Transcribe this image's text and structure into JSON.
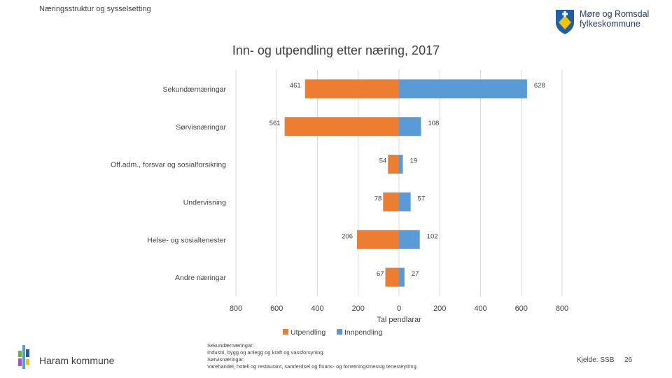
{
  "header": {
    "section_label": "Næringsstruktur og sysselsetting"
  },
  "logo": {
    "line1": "Møre og Romsdal",
    "line2": "fylkeskommune"
  },
  "chart_data": {
    "type": "bar",
    "orientation": "horizontal",
    "title": "Inn- og utpendling etter næring, 2017",
    "xlabel": "Tal pendlarar",
    "xlim": [
      -800,
      800
    ],
    "xticks": [
      -800,
      -600,
      -400,
      -200,
      0,
      200,
      400,
      600,
      800
    ],
    "xtick_labels": [
      "800",
      "600",
      "400",
      "200",
      "0",
      "200",
      "400",
      "600",
      "800"
    ],
    "categories": [
      "Sekundærnæringar",
      "Sørvisnæringar",
      "Off.adm., forsvar og sosialforsikring",
      "Undervisning",
      "Helse- og sosialtenester",
      "Andre næringar"
    ],
    "series": [
      {
        "name": "Utpendling",
        "color": "#ED7D31",
        "values": [
          461,
          561,
          54,
          78,
          206,
          67
        ]
      },
      {
        "name": "Innpendling",
        "color": "#5B9BD5",
        "values": [
          628,
          108,
          19,
          57,
          102,
          27
        ]
      }
    ],
    "grid": true,
    "legend": "bottom"
  },
  "notes": {
    "line1": "Sekundærnæringar:",
    "line2": "Industri, bygg og anlegg og kraft og vassforsyning.",
    "line3": "Sørvisnæringar:",
    "line4": "Varehandel, hotell og restaurant, samferdsel og finans- og forretningsmessig tenesteytring."
  },
  "footer": {
    "org": "Haram kommune",
    "source": "Kjelde: SSB",
    "page": "26"
  }
}
